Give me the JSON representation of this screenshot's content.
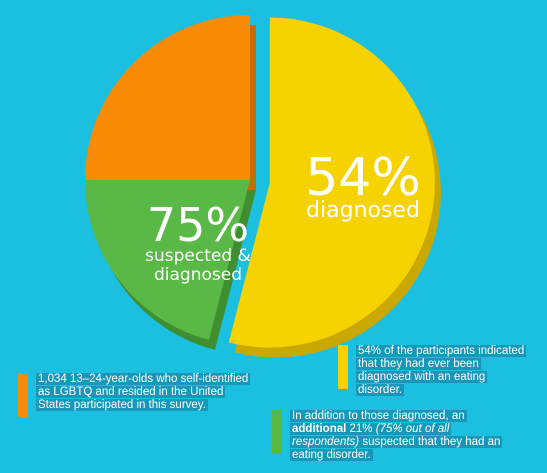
{
  "colors": {
    "background": "#1bbfe0",
    "diagnosed": "#f5d200",
    "suspected": "#5ab847",
    "other": "#f98a05"
  },
  "chart_data": {
    "type": "pie",
    "slices": [
      {
        "key": "diagnosed",
        "value": 54,
        "percent_label": "54%",
        "label": "diagnosed",
        "color": "#f5d200"
      },
      {
        "key": "suspected",
        "value": 21,
        "percent_label": "75%",
        "label": "suspected & diagnosed",
        "color": "#5ab847"
      },
      {
        "key": "other",
        "value": 25,
        "color": "#f98a05"
      }
    ]
  },
  "notes": {
    "respondents": "1,034 13–24-year-olds who self-identified as LGBTQ and resided in the United States participated in this survey.",
    "diagnosed": "54% of the participants indicated that they had ever been diagnosed with an eating disorder.",
    "suspected_prefix": "In addition to those diagnosed, an ",
    "suspected_bold": "additional",
    "suspected_mid": " 21% ",
    "suspected_italic": "(75% out of all respondents)",
    "suspected_suffix": " suspected that they had an eating disorder."
  }
}
